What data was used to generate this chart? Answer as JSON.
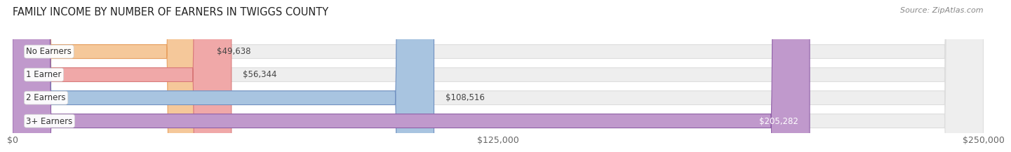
{
  "title": "FAMILY INCOME BY NUMBER OF EARNERS IN TWIGGS COUNTY",
  "source": "Source: ZipAtlas.com",
  "categories": [
    "No Earners",
    "1 Earner",
    "2 Earners",
    "3+ Earners"
  ],
  "values": [
    49638,
    56344,
    108516,
    205282
  ],
  "labels": [
    "$49,638",
    "$56,344",
    "$108,516",
    "$205,282"
  ],
  "bar_colors": [
    "#f5c89a",
    "#f0a8a8",
    "#a8c4e0",
    "#c099cc"
  ],
  "bar_edge_colors": [
    "#e8a060",
    "#d87878",
    "#7090c0",
    "#9060a8"
  ],
  "background_color": "#ffffff",
  "bar_bg_color": "#eeeeee",
  "bar_bg_edge_color": "#dddddd",
  "xlim": [
    0,
    250000
  ],
  "xticks": [
    0,
    125000,
    250000
  ],
  "xticklabels": [
    "$0",
    "$125,000",
    "$250,000"
  ],
  "title_fontsize": 10.5,
  "source_fontsize": 8,
  "label_fontsize": 8.5,
  "tick_fontsize": 9,
  "cat_fontsize": 8.5,
  "value_label_inside_idx": 3,
  "value_label_inside_color": "white",
  "value_label_outside_color": "#444444"
}
